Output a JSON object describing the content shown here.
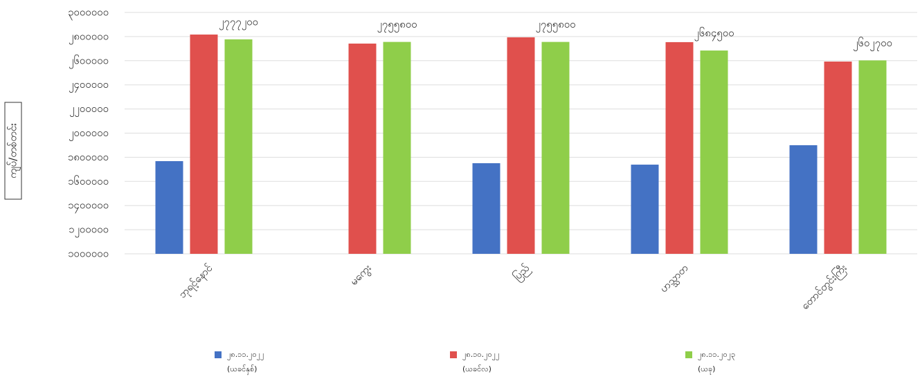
{
  "chart_data": {
    "type": "bar",
    "y_label": "ကျပ်/တစ်တင်း",
    "categories": [
      "ဘုရင့်နောင်",
      "မကွေး",
      "ပြည်",
      "ဟသ္သာတ",
      "တောင်တွင်းကြီး"
    ],
    "series": [
      {
        "name": "၂၈.၁၁.၂၀၂၂",
        "period": "(ယခင်နှစ်)",
        "color": "#4472c4",
        "values": [
          1768000,
          null,
          1751000,
          1739000,
          1900000
        ]
      },
      {
        "name": "၂၈.၁၀.၂၀၂၂",
        "period": "(ယခင်လ)",
        "color": "#e0504d",
        "values": [
          2817000,
          2742000,
          2794000,
          2754000,
          2593000
        ]
      },
      {
        "name": "၂၈.၁၁.၂၀၂၃",
        "period": "(ယခု)",
        "color": "#8fce4a",
        "values": [
          2777200,
          2755800,
          2755800,
          2684500,
          2602700
        ],
        "value_labels": [
          "၂၇၇၇၂၀၀",
          "၂၇၅၅၈၀၀",
          "၂၇၅၅၈၀၀",
          "၂၆၈၄၅၀၀",
          "၂၆၀၂၇၀၀"
        ]
      }
    ],
    "ylim": [
      1000000,
      3000000
    ],
    "yticks": [
      {
        "value": 1000000,
        "label": "၁၀၀၀၀၀၀"
      },
      {
        "value": 1200000,
        "label": "၁၂၀၀၀၀၀"
      },
      {
        "value": 1400000,
        "label": "၁၄၀၀၀၀၀"
      },
      {
        "value": 1600000,
        "label": "၁၆၀၀၀၀၀"
      },
      {
        "value": 1800000,
        "label": "၁၈၀၀၀၀၀"
      },
      {
        "value": 2000000,
        "label": "၂၀၀၀၀၀၀"
      },
      {
        "value": 2200000,
        "label": "၂၂၀၀၀၀၀"
      },
      {
        "value": 2400000,
        "label": "၂၄၀၀၀၀၀"
      },
      {
        "value": 2600000,
        "label": "၂၆၀၀၀၀၀"
      },
      {
        "value": 2800000,
        "label": "၂၈၀၀၀၀၀"
      },
      {
        "value": 3000000,
        "label": "၃၀၀၀၀၀၀"
      }
    ],
    "grid": true
  }
}
